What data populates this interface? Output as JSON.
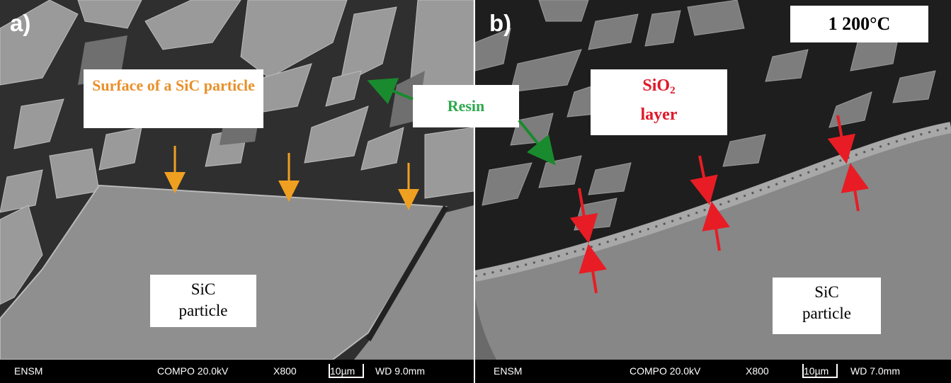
{
  "panel_a": {
    "letter": "a)",
    "surface_label": "Surface of a SiC particle",
    "sic_label_line1": "SiC",
    "sic_label_line2": "particle",
    "infobar": {
      "lab": "ENSM",
      "mode": "COMPO 20.0kV",
      "mag": "X800",
      "scale": "10µm",
      "wd": "WD 9.0mm"
    }
  },
  "panel_b": {
    "letter": "b)",
    "temperature": "1 200°C",
    "sio2_label_main": "SiO",
    "sio2_label_sub": "2",
    "sio2_label_line2": "layer",
    "sic_label_line1": "SiC",
    "sic_label_line2": "particle",
    "infobar": {
      "lab": "ENSM",
      "mode": "COMPO 20.0kV",
      "mag": "X800",
      "scale": "10µm",
      "wd": "WD 7.0mm"
    }
  },
  "resin_label": "Resin",
  "colors": {
    "orange_arrow": "#f0a020",
    "green_arrow": "#1a8a2e",
    "red_arrow": "#e81c24",
    "resin_label_text": "#2fa84f",
    "surface_label_text": "#e8902a",
    "sio2_label_text": "#e0182a"
  }
}
